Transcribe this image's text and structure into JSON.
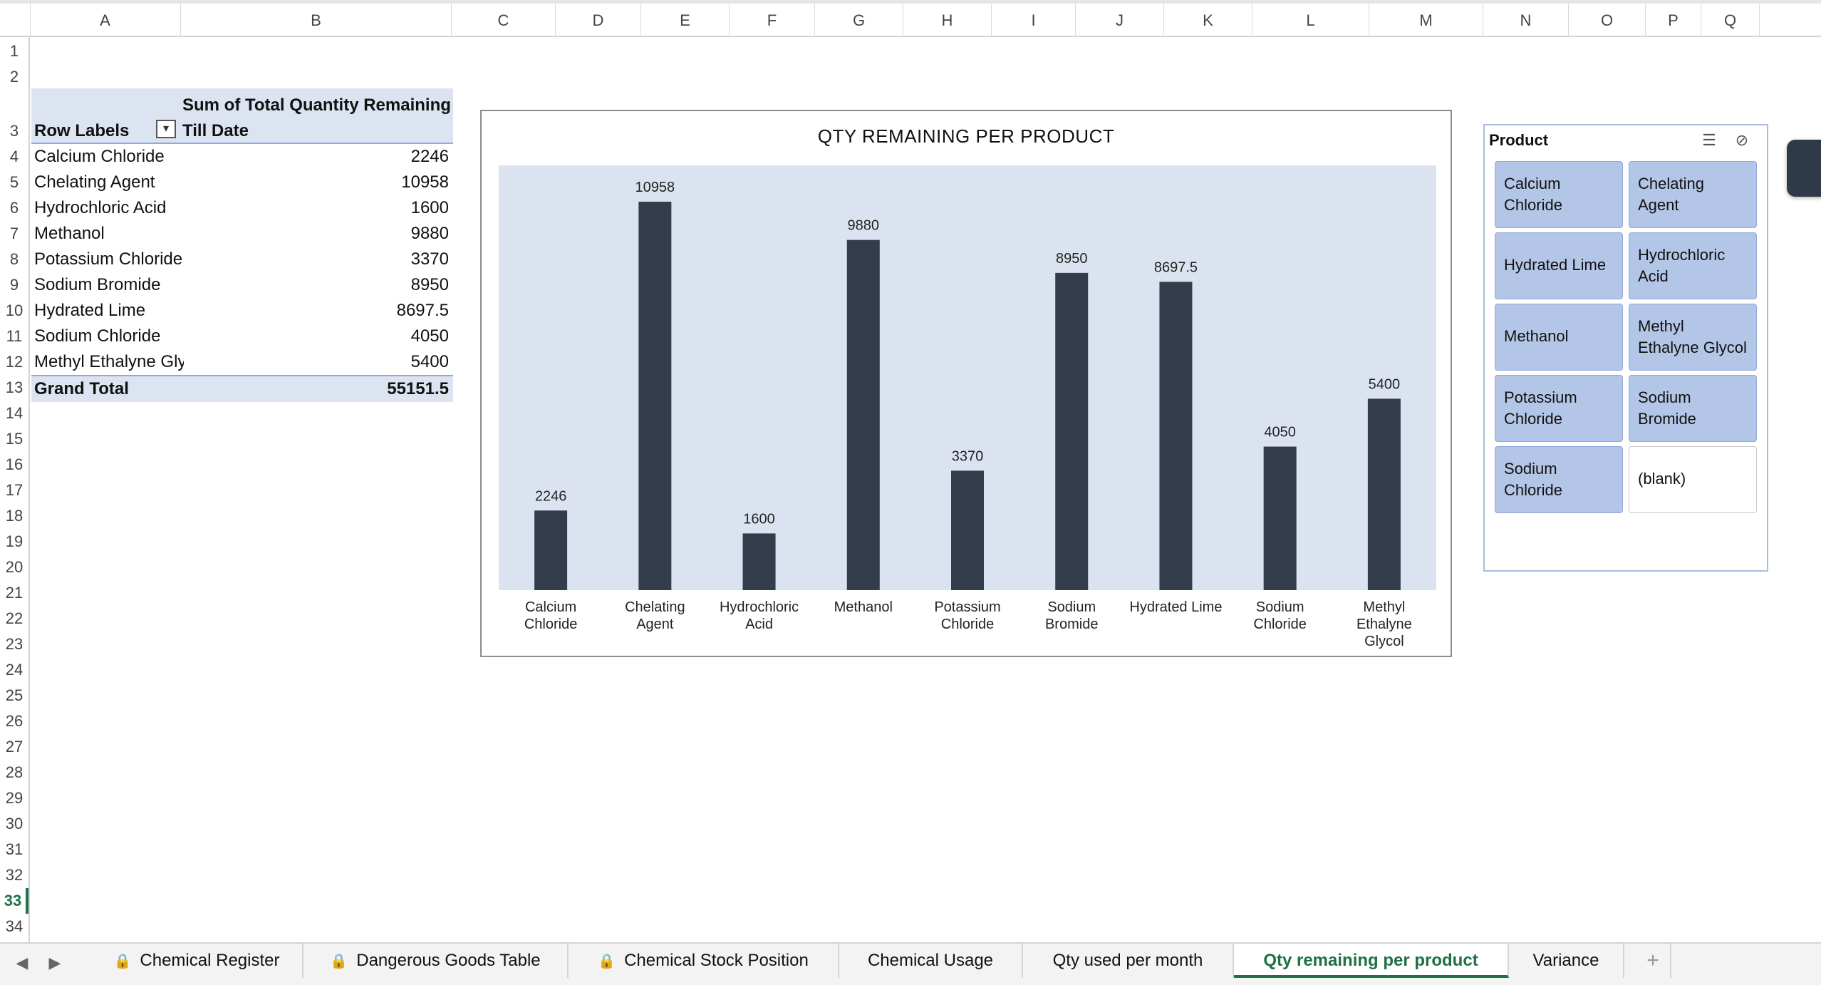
{
  "columns": [
    "A",
    "B",
    "C",
    "D",
    "E",
    "F",
    "G",
    "H",
    "I",
    "J",
    "K",
    "L",
    "M",
    "N",
    "O",
    "P",
    "Q"
  ],
  "rows": [
    "1",
    "2",
    "3",
    "4",
    "5",
    "6",
    "7",
    "8",
    "9",
    "10",
    "11",
    "12",
    "13",
    "14",
    "15",
    "16",
    "17",
    "18",
    "19",
    "20",
    "21",
    "22",
    "23",
    "24",
    "25",
    "26",
    "27",
    "28",
    "29",
    "30",
    "31",
    "32",
    "33",
    "34"
  ],
  "active_row": "33",
  "pivot": {
    "row_labels": "Row Labels",
    "value_header": "Sum of Total Quantity Remaining Till Date",
    "rows": [
      {
        "name": "Calcium Chloride",
        "value": "2246"
      },
      {
        "name": "Chelating Agent",
        "value": "10958"
      },
      {
        "name": "Hydrochloric Acid",
        "value": "1600"
      },
      {
        "name": "Methanol",
        "value": "9880"
      },
      {
        "name": "Potassium Chloride",
        "value": "3370"
      },
      {
        "name": "Sodium Bromide",
        "value": "8950"
      },
      {
        "name": "Hydrated Lime",
        "value": "8697.5"
      },
      {
        "name": "Sodium Chloride",
        "value": "4050"
      },
      {
        "name": "Methyl Ethalyne Gly",
        "value": "5400"
      }
    ],
    "total_label": "Grand Total",
    "total_value": "55151.5"
  },
  "chart_data": {
    "type": "bar",
    "title": "QTY REMAINING PER PRODUCT",
    "categories": [
      [
        "Calcium",
        "Chloride"
      ],
      [
        "Chelating",
        "Agent"
      ],
      [
        "Hydrochloric",
        "Acid"
      ],
      [
        "Methanol"
      ],
      [
        "Potassium",
        "Chloride"
      ],
      [
        "Sodium",
        "Bromide"
      ],
      [
        "Hydrated Lime"
      ],
      [
        "Sodium",
        "Chloride"
      ],
      [
        "Methyl",
        "Ethalyne",
        "Glycol"
      ]
    ],
    "values": [
      2246,
      10958,
      1600,
      9880,
      3370,
      8950,
      8697.5,
      4050,
      5400
    ],
    "value_labels": [
      "2246",
      "10958",
      "1600",
      "9880",
      "3370",
      "8950",
      "8697.5",
      "4050",
      "5400"
    ],
    "ylim": [
      0,
      12000
    ],
    "bar_color": "#333c4a",
    "plot_bg": "#dce3f0",
    "grid": false,
    "legend": "none"
  },
  "slicer": {
    "title": "Product",
    "multi_select_icon": "multi-select-icon",
    "clear_filter_icon": "clear-filter-icon",
    "items": [
      {
        "lines": [
          "Calcium",
          "Chloride"
        ],
        "selected": true
      },
      {
        "lines": [
          "Chelating",
          "Agent"
        ],
        "selected": true
      },
      {
        "lines": [
          "Hydrated Lime"
        ],
        "selected": true
      },
      {
        "lines": [
          "Hydrochloric",
          "Acid"
        ],
        "selected": true
      },
      {
        "lines": [
          "Methanol"
        ],
        "selected": true
      },
      {
        "lines": [
          "Methyl",
          "Ethalyne Glycol"
        ],
        "selected": true
      },
      {
        "lines": [
          "Potassium",
          "Chloride"
        ],
        "selected": true
      },
      {
        "lines": [
          "Sodium",
          "Bromide"
        ],
        "selected": true
      },
      {
        "lines": [
          "Sodium",
          "Chloride"
        ],
        "selected": true
      },
      {
        "lines": [
          "(blank)"
        ],
        "selected": false
      }
    ]
  },
  "sheet_tabs": [
    {
      "label": "Chemical Register",
      "locked": true,
      "active": false
    },
    {
      "label": "Dangerous Goods Table",
      "locked": true,
      "active": false
    },
    {
      "label": "Chemical Stock Position",
      "locked": true,
      "active": false
    },
    {
      "label": "Chemical Usage",
      "locked": false,
      "active": false
    },
    {
      "label": "Qty used per month",
      "locked": false,
      "active": false
    },
    {
      "label": "Qty remaining per product",
      "locked": false,
      "active": true
    },
    {
      "label": "Variance",
      "locked": false,
      "active": false
    }
  ],
  "add_sheet_label": "+",
  "nav": {
    "prev": "◀",
    "next": "▶"
  }
}
